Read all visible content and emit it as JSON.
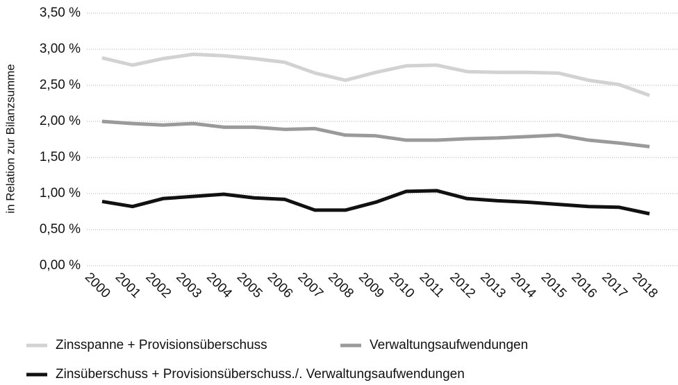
{
  "chart_data": {
    "type": "line",
    "y_label": "in Relation zur Bilanzsumme",
    "categories": [
      "2000",
      "2001",
      "2002",
      "2003",
      "2004",
      "2005",
      "2006",
      "2007",
      "2008",
      "2009",
      "2010",
      "2011",
      "2012",
      "2013",
      "2014",
      "2015",
      "2016",
      "2017",
      "2018"
    ],
    "series": [
      {
        "name": "Zinsspanne + Provisionsüberschuss",
        "color": "#d2d2d2",
        "values": [
          2.88,
          2.78,
          2.87,
          2.93,
          2.91,
          2.87,
          2.82,
          2.67,
          2.57,
          2.68,
          2.77,
          2.78,
          2.69,
          2.68,
          2.68,
          2.67,
          2.57,
          2.51,
          2.36
        ]
      },
      {
        "name": "Verwaltungsaufwendungen",
        "color": "#9a9a9a",
        "values": [
          2.0,
          1.97,
          1.95,
          1.97,
          1.92,
          1.92,
          1.89,
          1.9,
          1.81,
          1.8,
          1.74,
          1.74,
          1.76,
          1.77,
          1.79,
          1.81,
          1.74,
          1.7,
          1.65
        ]
      },
      {
        "name": "Zinsüberschuss + Provisionsüberschuss./. Verwaltungsaufwendungen",
        "color": "#111111",
        "values": [
          0.89,
          0.82,
          0.93,
          0.96,
          0.99,
          0.94,
          0.92,
          0.77,
          0.77,
          0.88,
          1.03,
          1.04,
          0.93,
          0.9,
          0.88,
          0.85,
          0.82,
          0.81,
          0.72
        ]
      }
    ],
    "ylim": [
      0,
      3.5
    ],
    "yticks": [
      {
        "value": 0,
        "label": "0,00 %"
      },
      {
        "value": 0.5,
        "label": "0,50 %"
      },
      {
        "value": 1,
        "label": "1,00 %"
      },
      {
        "value": 1.5,
        "label": "1,50 %"
      },
      {
        "value": 2,
        "label": "2,00 %"
      },
      {
        "value": 2.5,
        "label": "2,50 %"
      },
      {
        "value": 3,
        "label": "3,00 %"
      },
      {
        "value": 3.5,
        "label": "3,50 %"
      }
    ],
    "grid": true
  }
}
